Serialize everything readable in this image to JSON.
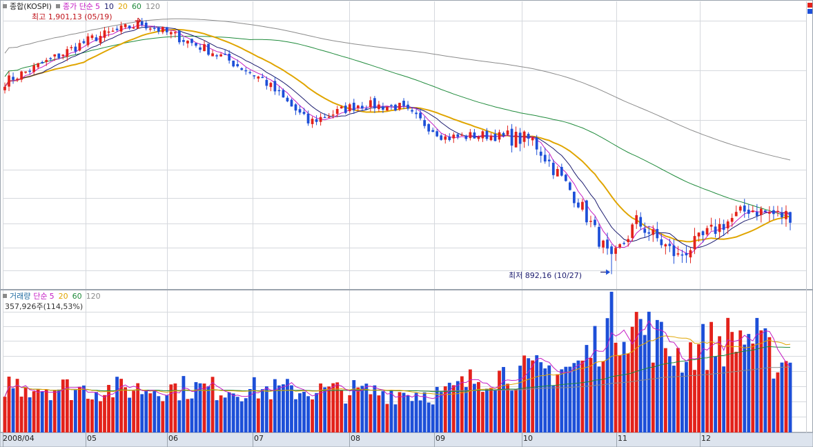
{
  "colors": {
    "up": "#e3221b",
    "down": "#1d4fd8",
    "ma5": "#c41bc4",
    "ma10": "#1a1a6e",
    "ma20": "#e0a500",
    "ma60": "#1e8a3a",
    "ma120": "#8a8a8a",
    "grid": "#d5d8dd",
    "axis_bg": "#dde4ee"
  },
  "price_panel": {
    "title": "종합(KOSPI)",
    "ma_label": "종가 단순",
    "periods": [
      "5",
      "10",
      "20",
      "60",
      "120"
    ],
    "high_note": "최고 1,901,13 (05/19)",
    "low_note": "최저 892,16 (10/27)"
  },
  "volume_panel": {
    "title": "거래량",
    "ma_label": "단순",
    "periods": [
      "5",
      "20",
      "60",
      "120"
    ],
    "readout": "357,926주(114,53%)"
  },
  "x_ticks": [
    "2008/04",
    "05",
    "06",
    "07",
    "08",
    "09",
    "10",
    "11",
    "12"
  ],
  "chart_data": {
    "type": "candlestick",
    "title": "종합(KOSPI)",
    "x_range": [
      "2008/04",
      "2008/12"
    ],
    "price_ylim": [
      850,
      1950
    ],
    "grid": true,
    "price_close_keypoints": [
      {
        "date": "04/01",
        "close": 1650
      },
      {
        "date": "04/15",
        "close": 1720
      },
      {
        "date": "05/01",
        "close": 1820
      },
      {
        "date": "05/19",
        "close": 1880
      },
      {
        "date": "06/01",
        "close": 1830
      },
      {
        "date": "06/16",
        "close": 1760
      },
      {
        "date": "07/01",
        "close": 1660
      },
      {
        "date": "07/16",
        "close": 1490
      },
      {
        "date": "08/01",
        "close": 1560
      },
      {
        "date": "08/16",
        "close": 1550
      },
      {
        "date": "09/01",
        "close": 1430
      },
      {
        "date": "09/16",
        "close": 1440
      },
      {
        "date": "10/01",
        "close": 1420
      },
      {
        "date": "10/16",
        "close": 1180
      },
      {
        "date": "10/27",
        "close": 940
      },
      {
        "date": "11/05",
        "close": 1100
      },
      {
        "date": "11/20",
        "close": 960
      },
      {
        "date": "12/01",
        "close": 1050
      },
      {
        "date": "12/16",
        "close": 1150
      },
      {
        "date": "12/26",
        "close": 1125
      }
    ],
    "price_high": {
      "value": 1901.13,
      "date": "05/19"
    },
    "price_low": {
      "value": 892.16,
      "date": "10/27"
    },
    "volume_keypoints": [
      {
        "date": "04/01",
        "volume": 250000
      },
      {
        "date": "05/01",
        "volume": 220000
      },
      {
        "date": "06/01",
        "volume": 230000
      },
      {
        "date": "07/01",
        "volume": 220000
      },
      {
        "date": "08/01",
        "volume": 210000
      },
      {
        "date": "09/01",
        "volume": 200000
      },
      {
        "date": "09/16",
        "volume": 300000
      },
      {
        "date": "10/01",
        "volume": 310000
      },
      {
        "date": "10/16",
        "volume": 340000
      },
      {
        "date": "10/27",
        "volume": 560000
      },
      {
        "date": "11/05",
        "volume": 560000
      },
      {
        "date": "11/20",
        "volume": 400000
      },
      {
        "date": "12/01",
        "volume": 450000
      },
      {
        "date": "12/16",
        "volume": 500000
      },
      {
        "date": "12/26",
        "volume": 357926
      }
    ],
    "volume_ylim": [
      0,
      700000
    ],
    "last_volume": 357926
  }
}
